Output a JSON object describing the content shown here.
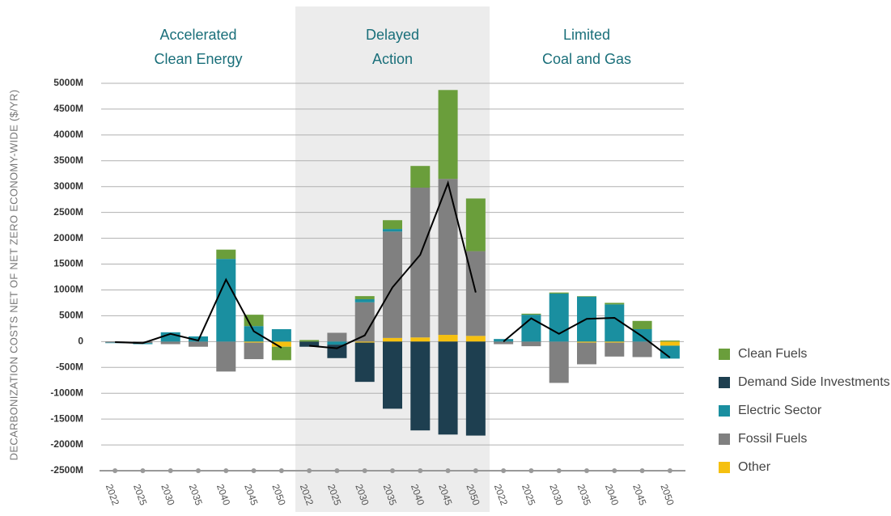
{
  "chart_data": {
    "type": "bar",
    "stacked": true,
    "ylabel": "DECARBONIZATION COSTS NET OF NET ZERO ECONOMY-WIDE ($/YR)",
    "ylim": [
      -2500,
      5000
    ],
    "yticks": [
      {
        "value": 5000,
        "label": "5000M"
      },
      {
        "value": 4500,
        "label": "4500M"
      },
      {
        "value": 4000,
        "label": "4000M"
      },
      {
        "value": 3500,
        "label": "3500M"
      },
      {
        "value": 3000,
        "label": "3000M"
      },
      {
        "value": 2500,
        "label": "2500M"
      },
      {
        "value": 2000,
        "label": "2000M"
      },
      {
        "value": 1500,
        "label": "1500M"
      },
      {
        "value": 1000,
        "label": "1000M"
      },
      {
        "value": 500,
        "label": "500M"
      },
      {
        "value": 0,
        "label": "0"
      },
      {
        "value": -500,
        "label": "-500M"
      },
      {
        "value": -1000,
        "label": "-1000M"
      },
      {
        "value": -1500,
        "label": "-1500M"
      },
      {
        "value": -2000,
        "label": "-2000M"
      },
      {
        "value": -2500,
        "label": "-2500M"
      }
    ],
    "grid": true,
    "legend": "right",
    "series": [
      {
        "name": "Clean Fuels",
        "color": "#6a9e3b"
      },
      {
        "name": "Demand Side Investments",
        "color": "#1e3f50"
      },
      {
        "name": "Electric Sector",
        "color": "#1a8fa0"
      },
      {
        "name": "Fossil Fuels",
        "color": "#808080"
      },
      {
        "name": "Other",
        "color": "#f5c010"
      }
    ],
    "line_color": "#000000",
    "panels": [
      {
        "title": [
          "Accelerated",
          "Clean Energy"
        ],
        "shaded": false,
        "categories": [
          "2022",
          "2025",
          "2030",
          "2035",
          "2040",
          "2045",
          "2050"
        ],
        "values": [
          [
            0,
            0,
            0,
            0,
            180,
            220,
            -260
          ],
          [
            0,
            0,
            0,
            0,
            0,
            0,
            0
          ],
          [
            -10,
            -20,
            180,
            100,
            1600,
            300,
            240
          ],
          [
            -20,
            -30,
            -50,
            -100,
            -580,
            -320,
            0
          ],
          [
            0,
            0,
            0,
            0,
            0,
            -20,
            -100
          ]
        ],
        "net": [
          -10,
          -30,
          150,
          20,
          1200,
          200,
          -120
        ]
      },
      {
        "title": [
          "Delayed",
          "Action"
        ],
        "shaded": true,
        "categories": [
          "2022",
          "2025",
          "2030",
          "2035",
          "2040",
          "2045",
          "2050"
        ],
        "values": [
          [
            30,
            0,
            60,
            170,
            420,
            1720,
            1020
          ],
          [
            -100,
            -260,
            -760,
            -1300,
            -1720,
            -1800,
            -1820
          ],
          [
            0,
            -60,
            60,
            50,
            0,
            0,
            0
          ],
          [
            0,
            170,
            760,
            2060,
            2900,
            3020,
            1640
          ],
          [
            0,
            0,
            -20,
            70,
            80,
            130,
            110
          ]
        ],
        "net": [
          -80,
          -130,
          120,
          1050,
          1680,
          3070,
          950
        ]
      },
      {
        "title": [
          "Limited",
          "Coal and Gas"
        ],
        "shaded": false,
        "categories": [
          "2022",
          "2025",
          "2030",
          "2035",
          "2040",
          "2045",
          "2050"
        ],
        "values": [
          [
            0,
            20,
            20,
            10,
            30,
            160,
            20
          ],
          [
            0,
            0,
            0,
            0,
            0,
            0,
            0
          ],
          [
            50,
            520,
            930,
            870,
            720,
            240,
            -250
          ],
          [
            -50,
            -90,
            -800,
            -420,
            -270,
            -300,
            0
          ],
          [
            0,
            0,
            0,
            -20,
            -20,
            0,
            -80
          ]
        ],
        "net": [
          0,
          450,
          150,
          440,
          460,
          100,
          -310
        ]
      }
    ]
  }
}
